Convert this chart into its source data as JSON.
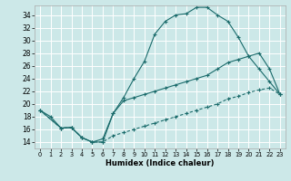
{
  "xlabel": "Humidex (Indice chaleur)",
  "bg_color": "#cce8e8",
  "grid_color": "#ffffff",
  "line_color": "#1a6b6b",
  "xlim": [
    -0.5,
    23.5
  ],
  "ylim": [
    13.0,
    35.5
  ],
  "xticks": [
    0,
    1,
    2,
    3,
    4,
    5,
    6,
    7,
    8,
    9,
    10,
    11,
    12,
    13,
    14,
    15,
    16,
    17,
    18,
    19,
    20,
    21,
    22,
    23
  ],
  "yticks": [
    14,
    16,
    18,
    20,
    22,
    24,
    26,
    28,
    30,
    32,
    34
  ],
  "line1_x": [
    0,
    1,
    2,
    3,
    4,
    5,
    6,
    7,
    8,
    9,
    10,
    11,
    12,
    13,
    14,
    15,
    16,
    17,
    18,
    19,
    20,
    21,
    22,
    23
  ],
  "line1_y": [
    19.0,
    18.0,
    16.2,
    16.3,
    14.7,
    14.0,
    14.0,
    18.5,
    21.0,
    24.0,
    26.7,
    31.0,
    33.0,
    34.0,
    34.2,
    35.2,
    35.2,
    34.0,
    33.0,
    30.5,
    27.5,
    25.5,
    23.5,
    21.5
  ],
  "line2_x": [
    0,
    2,
    3,
    4,
    5,
    6,
    7,
    8,
    9,
    10,
    11,
    12,
    13,
    14,
    15,
    16,
    17,
    18,
    19,
    20,
    21,
    22,
    23
  ],
  "line2_y": [
    19.0,
    16.2,
    16.3,
    14.7,
    14.0,
    14.5,
    18.5,
    20.5,
    21.0,
    21.5,
    22.0,
    22.5,
    23.0,
    23.5,
    24.0,
    24.5,
    25.5,
    26.5,
    27.0,
    27.5,
    28.0,
    25.5,
    21.5
  ],
  "line3_x": [
    0,
    2,
    3,
    4,
    5,
    6,
    7,
    8,
    9,
    10,
    11,
    12,
    13,
    14,
    15,
    16,
    17,
    18,
    19,
    20,
    21,
    22,
    23
  ],
  "line3_y": [
    19.0,
    16.2,
    16.3,
    14.7,
    14.0,
    14.0,
    15.0,
    15.5,
    16.0,
    16.5,
    17.0,
    17.5,
    18.0,
    18.5,
    19.0,
    19.5,
    20.0,
    20.8,
    21.2,
    21.8,
    22.2,
    22.5,
    21.5
  ]
}
